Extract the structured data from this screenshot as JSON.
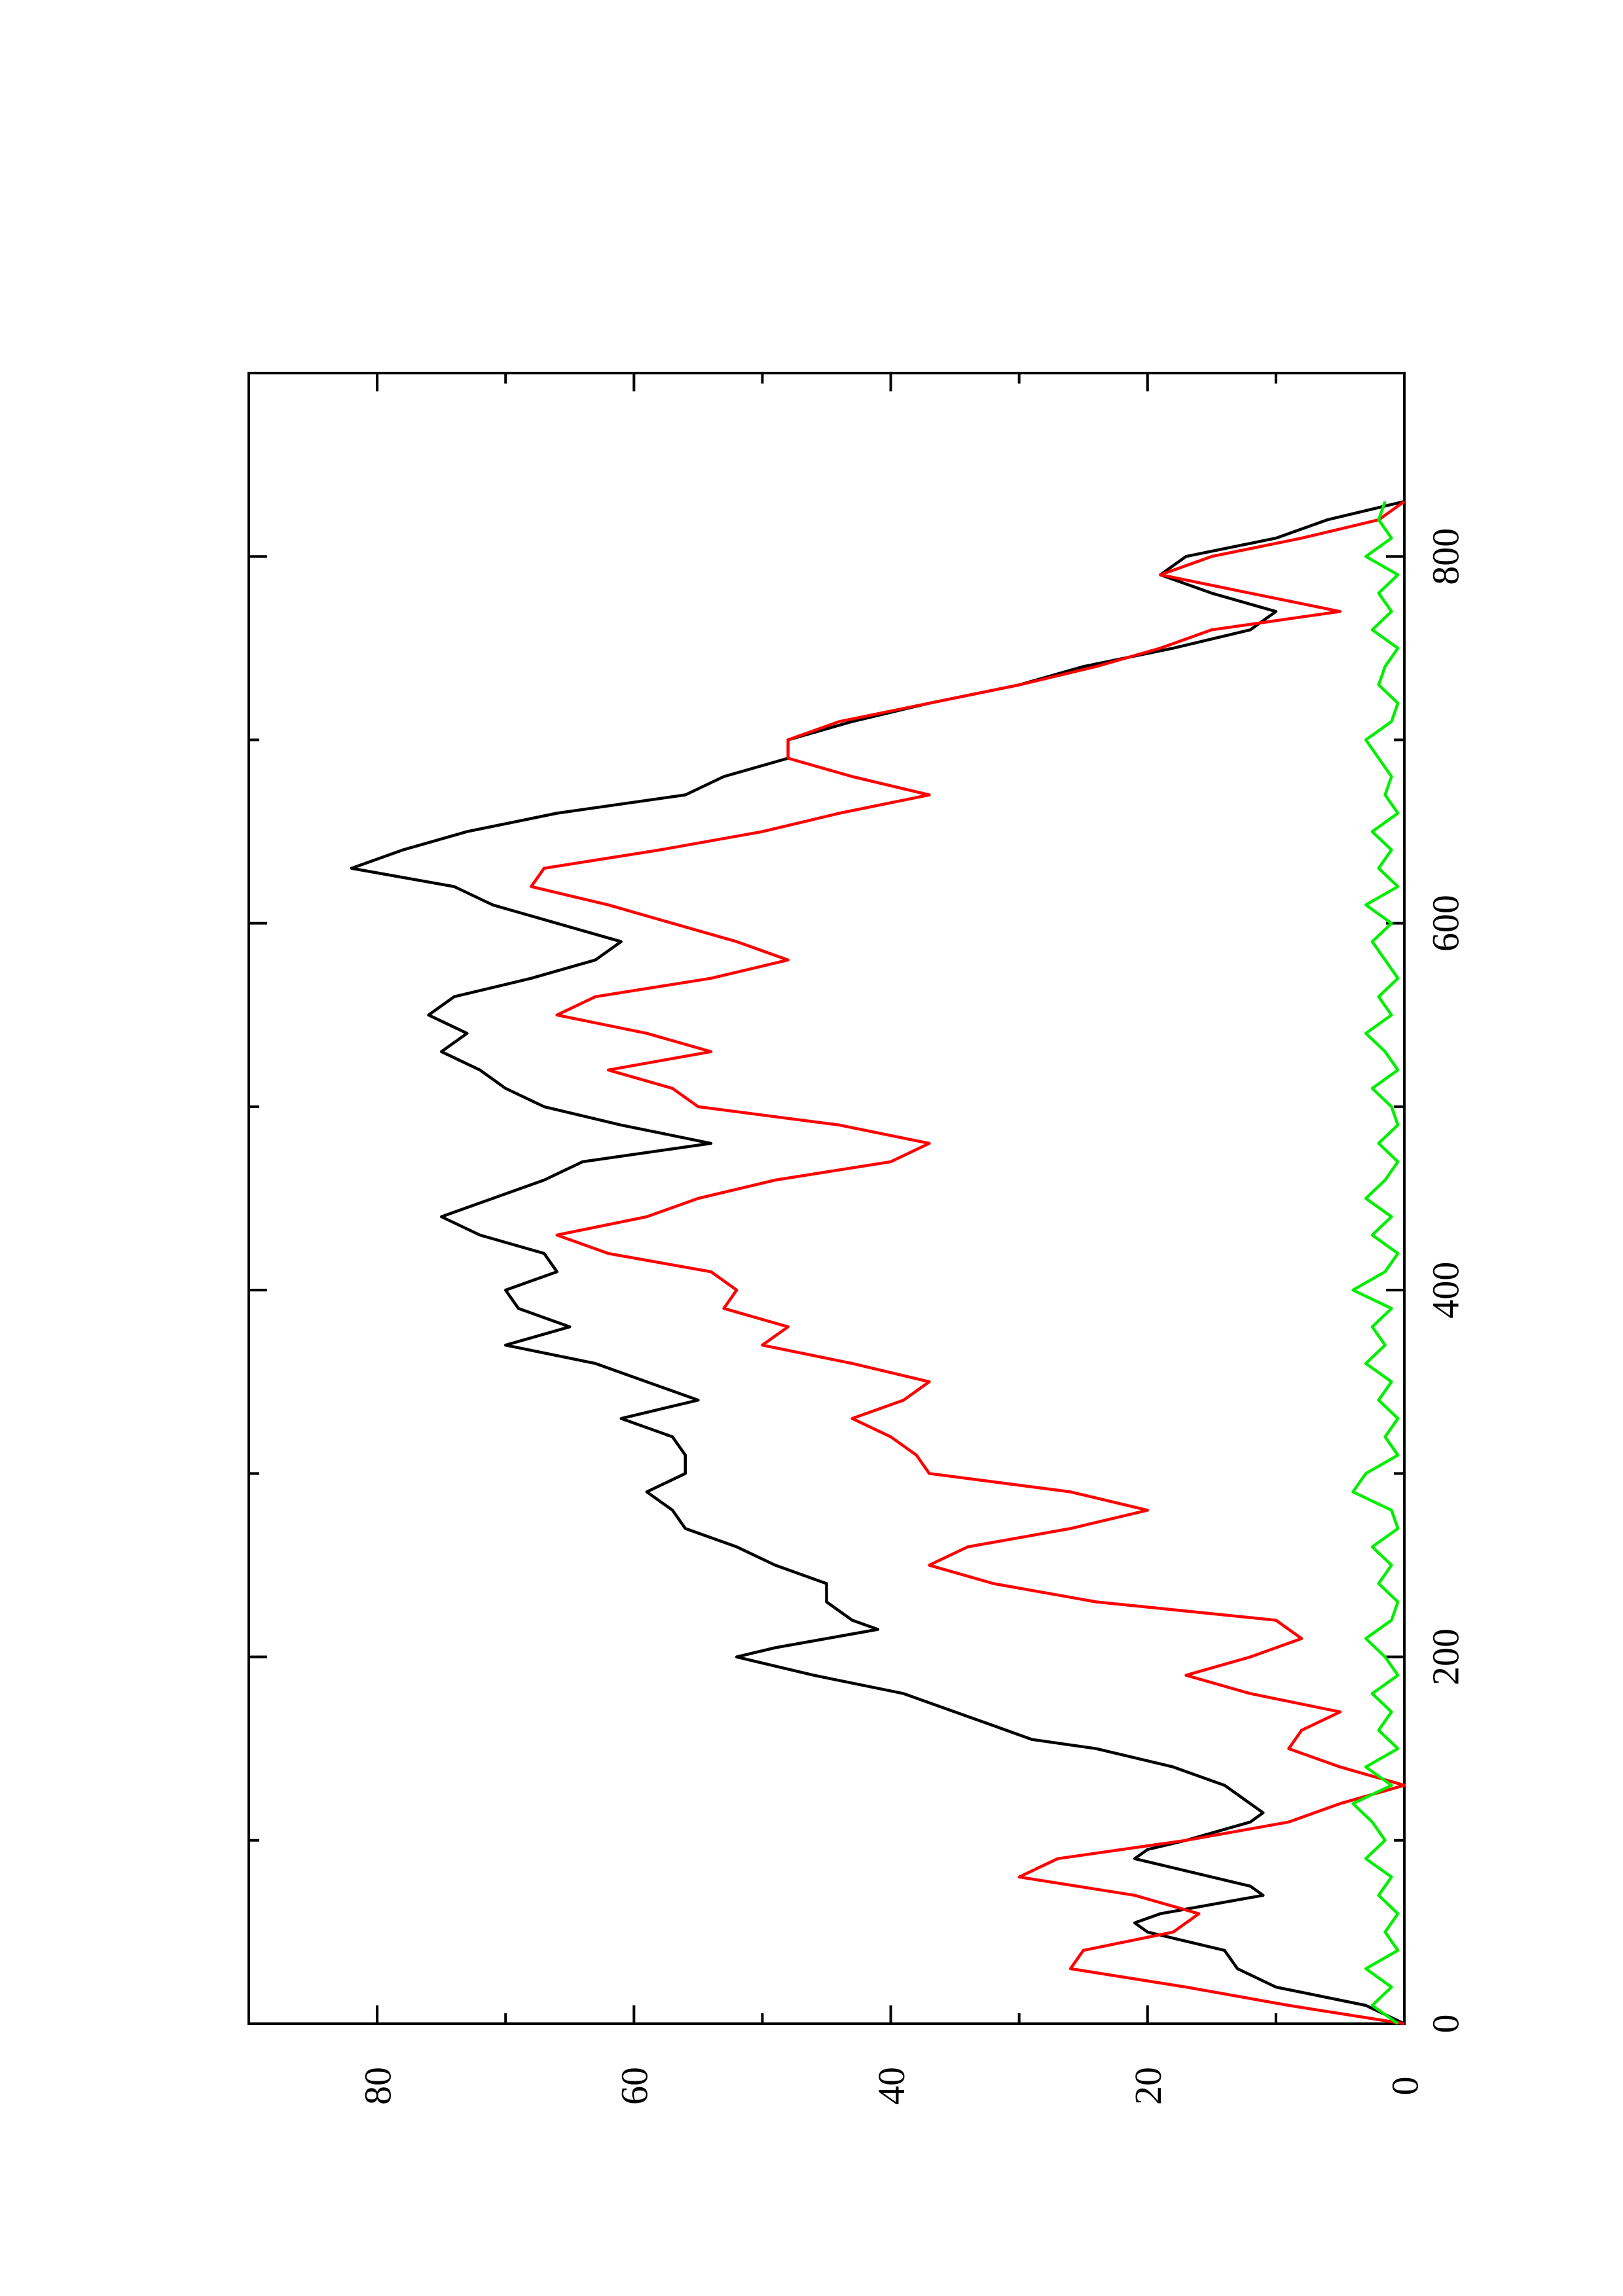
{
  "chart_data": {
    "type": "line",
    "orientation": "rotated 90 degrees counter-clockwise (x axis runs vertically, y axis horizontally)",
    "title": "",
    "xlabel": "",
    "ylabel": "",
    "xlim": [
      0,
      900
    ],
    "ylim": [
      0,
      90
    ],
    "x_ticks": [
      0,
      200,
      400,
      600,
      800
    ],
    "x_tick_labels": [
      "0",
      "200",
      "400",
      "600",
      "800"
    ],
    "x_minor_ticks": [
      100,
      300,
      500,
      700
    ],
    "y_ticks": [
      0,
      20,
      40,
      60,
      80
    ],
    "y_tick_labels": [
      "0",
      "20",
      "40",
      "60",
      "80"
    ],
    "y_minor_ticks": [
      10,
      30,
      50,
      70
    ],
    "grid": false,
    "legend": "none",
    "series": [
      {
        "color": "#000000",
        "x": [
          0,
          10,
          20,
          30,
          40,
          50,
          55,
          60,
          70,
          75,
          80,
          90,
          95,
          100,
          110,
          115,
          120,
          130,
          140,
          150,
          155,
          160,
          170,
          180,
          190,
          200,
          205,
          210,
          215,
          220,
          230,
          240,
          250,
          260,
          270,
          280,
          290,
          300,
          310,
          320,
          330,
          340,
          350,
          360,
          370,
          380,
          390,
          400,
          410,
          420,
          430,
          440,
          450,
          460,
          470,
          480,
          490,
          500,
          510,
          520,
          530,
          540,
          550,
          560,
          570,
          580,
          590,
          600,
          610,
          620,
          630,
          640,
          650,
          660,
          670,
          680,
          690,
          700,
          710,
          720,
          730,
          740,
          750,
          760,
          770,
          780,
          790,
          800,
          810,
          820,
          830
        ],
        "y": [
          0,
          3,
          10,
          13,
          14,
          20,
          21,
          19,
          11,
          12,
          15,
          21,
          20,
          17,
          12,
          11,
          12,
          14,
          18,
          24,
          29,
          31,
          35,
          39,
          46,
          52,
          49,
          45,
          41,
          43,
          45,
          45,
          49,
          52,
          56,
          57,
          59,
          56,
          56,
          57,
          61,
          55,
          59,
          63,
          70,
          65,
          69,
          70,
          66,
          67,
          72,
          75,
          71,
          67,
          64,
          54,
          61,
          67,
          70,
          72,
          75,
          73,
          76,
          74,
          68,
          63,
          61,
          66,
          71,
          74,
          82,
          78,
          73,
          66,
          56,
          53,
          48,
          48,
          43,
          37,
          30,
          25,
          18,
          12,
          10,
          15,
          19,
          17,
          10,
          6,
          0
        ]
      },
      {
        "color": "#ff0000",
        "x": [
          0,
          10,
          20,
          30,
          40,
          50,
          60,
          70,
          80,
          90,
          100,
          110,
          120,
          130,
          140,
          150,
          160,
          170,
          180,
          190,
          200,
          210,
          220,
          230,
          240,
          250,
          260,
          270,
          280,
          290,
          300,
          310,
          320,
          330,
          340,
          350,
          360,
          370,
          380,
          390,
          400,
          410,
          420,
          430,
          440,
          450,
          460,
          470,
          480,
          490,
          500,
          510,
          520,
          530,
          540,
          550,
          560,
          570,
          580,
          590,
          600,
          610,
          620,
          630,
          640,
          650,
          660,
          670,
          680,
          690,
          700,
          710,
          720,
          730,
          740,
          750,
          760,
          770,
          780,
          790,
          800,
          810,
          820,
          830
        ],
        "y": [
          0,
          9,
          17,
          26,
          25,
          18,
          16,
          21,
          30,
          27,
          17,
          9,
          5,
          0,
          5,
          9,
          8,
          5,
          12,
          17,
          12,
          8,
          10,
          24,
          32,
          37,
          34,
          26,
          20,
          26,
          37,
          38,
          40,
          43,
          39,
          37,
          43,
          50,
          48,
          53,
          52,
          54,
          62,
          66,
          59,
          55,
          49,
          40,
          37,
          44,
          55,
          57,
          62,
          54,
          59,
          66,
          63,
          54,
          48,
          52,
          57,
          62,
          68,
          67,
          58,
          50,
          44,
          37,
          43,
          48,
          48,
          44,
          37,
          30,
          24,
          19,
          15,
          5,
          12,
          19,
          15,
          8,
          2,
          0
        ]
      },
      {
        "color": "#00ee00",
        "x": [
          0,
          10,
          20,
          30,
          40,
          50,
          60,
          70,
          80,
          90,
          100,
          110,
          120,
          130,
          140,
          150,
          160,
          170,
          180,
          190,
          200,
          210,
          220,
          230,
          240,
          250,
          260,
          270,
          280,
          290,
          300,
          310,
          320,
          330,
          340,
          350,
          360,
          370,
          380,
          390,
          400,
          410,
          420,
          430,
          440,
          450,
          460,
          470,
          480,
          490,
          500,
          510,
          520,
          530,
          540,
          550,
          560,
          570,
          580,
          590,
          600,
          610,
          620,
          630,
          640,
          650,
          660,
          670,
          680,
          690,
          700,
          710,
          720,
          730,
          740,
          750,
          760,
          770,
          780,
          790,
          800,
          810,
          820,
          830
        ],
        "y": [
          0.5,
          2.5,
          1,
          3,
          0.5,
          1.5,
          0.5,
          2,
          1,
          3,
          1.5,
          2.5,
          4,
          1,
          3,
          0.5,
          2,
          1,
          2.5,
          0.5,
          1.5,
          3,
          1,
          0.5,
          2,
          1,
          2.5,
          0.5,
          1,
          4,
          3,
          0.5,
          1.5,
          0.5,
          2,
          1,
          3,
          1.5,
          2.5,
          1,
          4,
          1.5,
          0.5,
          2.5,
          1,
          3,
          1.5,
          0.5,
          2,
          0.5,
          1,
          2.5,
          0.5,
          1.5,
          3,
          1,
          2,
          0.5,
          1.5,
          2.5,
          1,
          3,
          0.5,
          2,
          1,
          2.5,
          0.5,
          1.5,
          1,
          2,
          3,
          1,
          0.5,
          2,
          1.5,
          0.5,
          2.5,
          1,
          2,
          0.5,
          3,
          1,
          2,
          1.5
        ]
      }
    ]
  }
}
